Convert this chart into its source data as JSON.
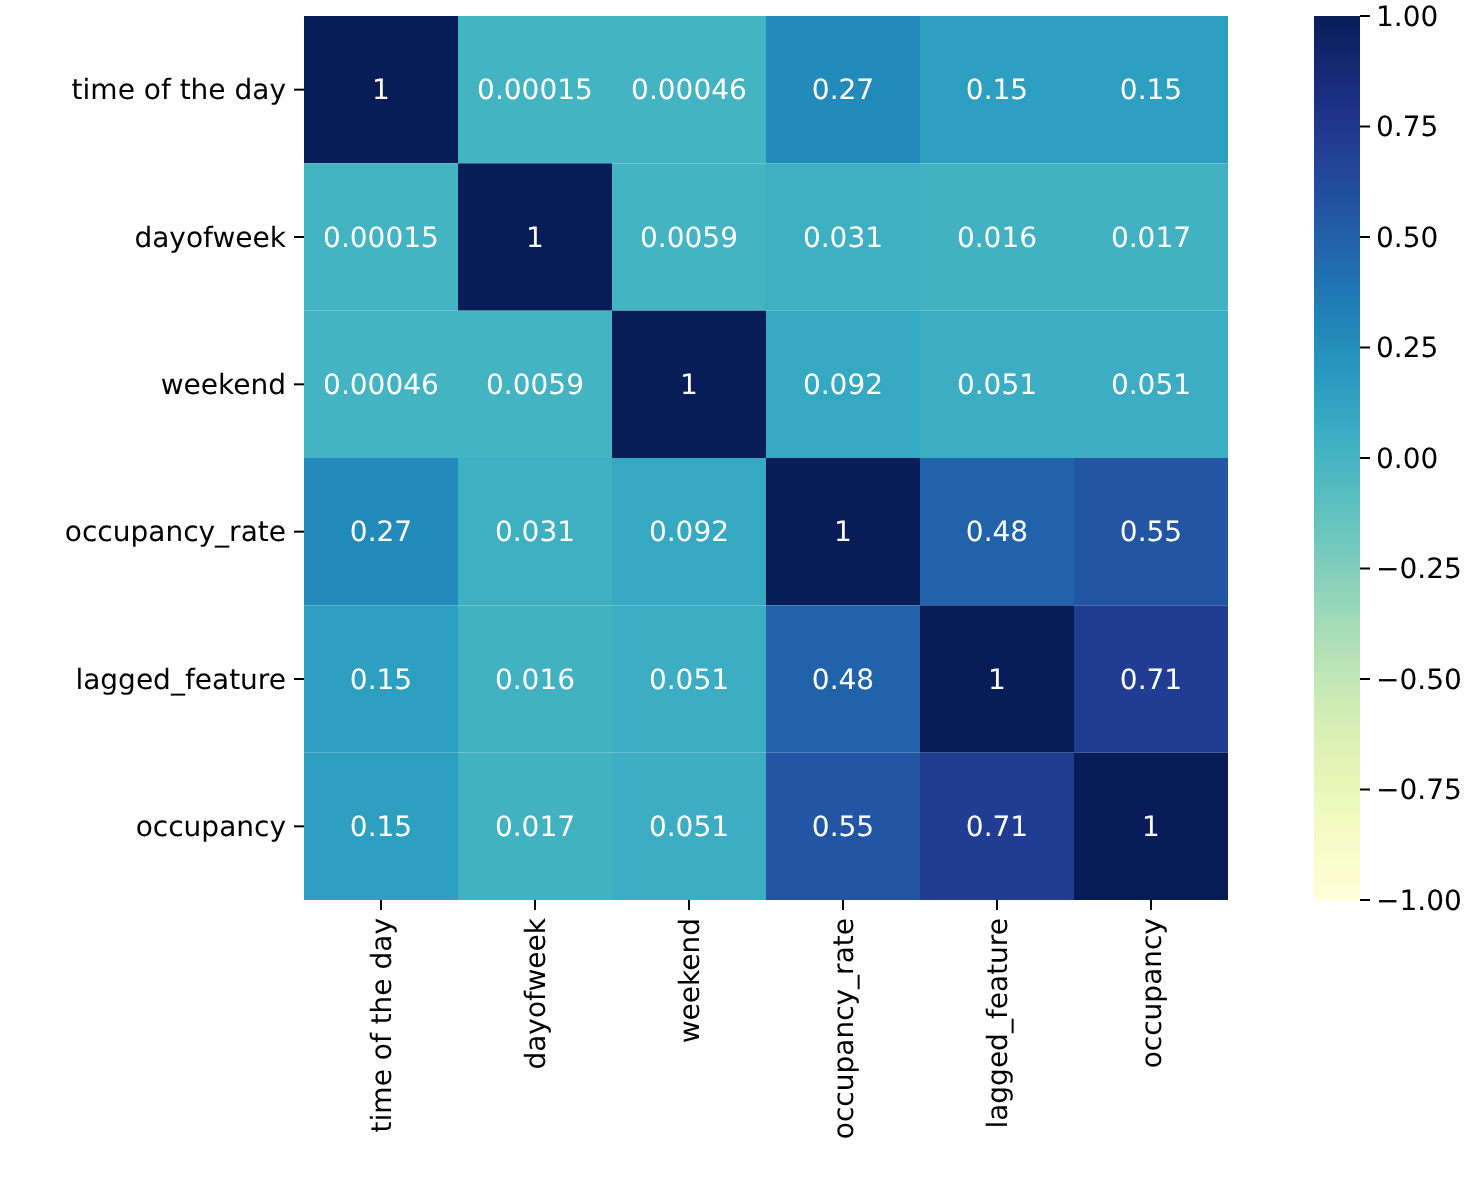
{
  "chart_data": {
    "type": "heatmap",
    "categories": [
      "time of the day",
      "dayofweek",
      "weekend",
      "occupancy_rate",
      "lagged_feature",
      "occupancy"
    ],
    "y_categories": [
      "time of the day",
      "dayofweek",
      "weekend",
      "occupancy_rate",
      "lagged_feature",
      "occupancy"
    ],
    "cells": [
      [
        1,
        0.00015,
        0.00046,
        0.27,
        0.15,
        0.15
      ],
      [
        0.00015,
        1,
        0.0059,
        0.031,
        0.016,
        0.017
      ],
      [
        0.00046,
        0.0059,
        1,
        0.092,
        0.051,
        0.051
      ],
      [
        0.27,
        0.031,
        0.092,
        1,
        0.48,
        0.55
      ],
      [
        0.15,
        0.016,
        0.051,
        0.48,
        1,
        0.71
      ],
      [
        0.15,
        0.017,
        0.051,
        0.55,
        0.71,
        1
      ]
    ],
    "clim": [
      -1,
      1
    ],
    "cticks": [
      {
        "value": 1,
        "label": "1.00"
      },
      {
        "value": 0.75,
        "label": "0.75"
      },
      {
        "value": 0.5,
        "label": "0.50"
      },
      {
        "value": 0.25,
        "label": "0.25"
      },
      {
        "value": 0,
        "label": "0.00"
      },
      {
        "value": -0.25,
        "label": "−0.25"
      },
      {
        "value": -0.5,
        "label": "−0.50"
      },
      {
        "value": -0.75,
        "label": "−0.75"
      },
      {
        "value": -1,
        "label": "−1.00"
      }
    ],
    "data_labels": true
  }
}
